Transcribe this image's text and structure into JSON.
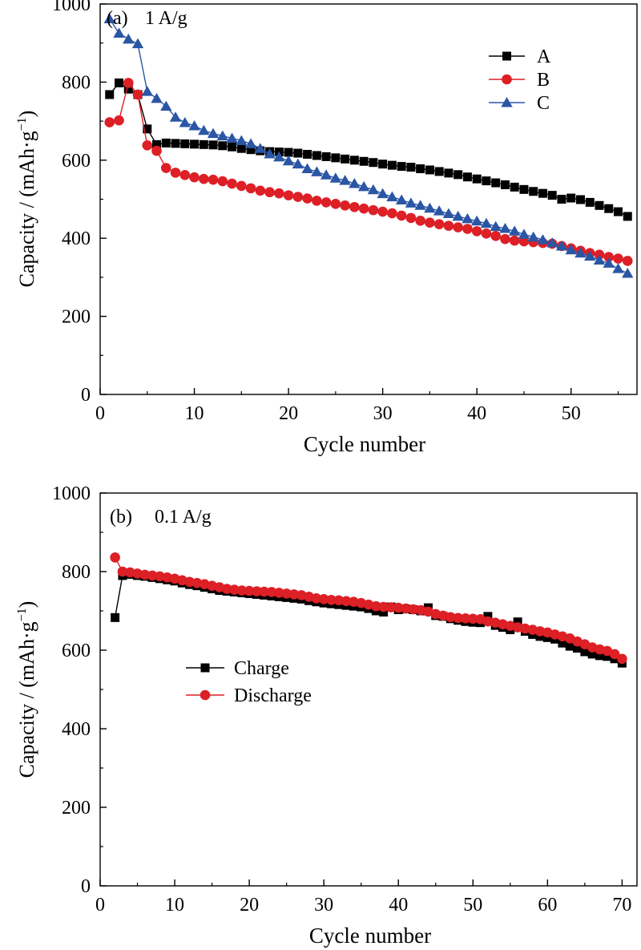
{
  "colors": {
    "A": "#000000",
    "B": "#dd1f26",
    "C": "#2a56a4",
    "Charge": "#000000",
    "Discharge": "#dd1f26"
  },
  "chart_data": [
    {
      "type": "line",
      "panel_label": "(a)",
      "annotation": "1 A/g",
      "xlabel": "Cycle number",
      "ylabel": "Capacity / (mAh·g",
      "ylabel_sup": "−1",
      "ylabel_close": ")",
      "xlim": [
        0,
        57
      ],
      "ylim": [
        0,
        1000
      ],
      "xticks": [
        0,
        10,
        20,
        30,
        40,
        50
      ],
      "yticks": [
        0,
        200,
        400,
        600,
        800,
        1000
      ],
      "grid": false,
      "legend_position": "top-right",
      "series": [
        {
          "name": "A",
          "marker": "square",
          "color": "#000000",
          "x": [
            1,
            2,
            3,
            4,
            5,
            6,
            7,
            8,
            9,
            10,
            11,
            12,
            13,
            14,
            15,
            16,
            17,
            18,
            19,
            20,
            21,
            22,
            23,
            24,
            25,
            26,
            27,
            28,
            29,
            30,
            31,
            32,
            33,
            34,
            35,
            36,
            37,
            38,
            39,
            40,
            41,
            42,
            43,
            44,
            45,
            46,
            47,
            48,
            49,
            50,
            51,
            52,
            53,
            54,
            55,
            56
          ],
          "y": [
            768,
            798,
            782,
            768,
            680,
            640,
            644,
            643,
            642,
            641,
            640,
            639,
            637,
            634,
            630,
            627,
            624,
            622,
            621,
            620,
            618,
            615,
            612,
            609,
            606,
            603,
            600,
            597,
            594,
            590,
            587,
            584,
            582,
            578,
            575,
            571,
            567,
            563,
            557,
            552,
            547,
            542,
            537,
            531,
            525,
            520,
            515,
            510,
            500,
            503,
            499,
            492,
            484,
            476,
            468,
            456
          ]
        },
        {
          "name": "B",
          "marker": "circle",
          "color": "#dd1f26",
          "x": [
            1,
            2,
            3,
            4,
            5,
            6,
            7,
            8,
            9,
            10,
            11,
            12,
            13,
            14,
            15,
            16,
            17,
            18,
            19,
            20,
            21,
            22,
            23,
            24,
            25,
            26,
            27,
            28,
            29,
            30,
            31,
            32,
            33,
            34,
            35,
            36,
            37,
            38,
            39,
            40,
            41,
            42,
            43,
            44,
            45,
            46,
            47,
            48,
            49,
            50,
            51,
            52,
            53,
            54,
            55,
            56
          ],
          "y": [
            697,
            702,
            798,
            768,
            638,
            624,
            580,
            568,
            562,
            556,
            552,
            550,
            546,
            540,
            534,
            528,
            522,
            518,
            515,
            510,
            506,
            502,
            496,
            492,
            488,
            484,
            480,
            476,
            472,
            468,
            464,
            458,
            452,
            445,
            440,
            436,
            432,
            428,
            424,
            418,
            412,
            406,
            398,
            394,
            392,
            390,
            388,
            386,
            380,
            374,
            368,
            362,
            358,
            352,
            348,
            342
          ]
        },
        {
          "name": "C",
          "marker": "triangle",
          "color": "#2a56a4",
          "x": [
            1,
            2,
            3,
            4,
            5,
            6,
            7,
            8,
            9,
            10,
            11,
            12,
            13,
            14,
            15,
            16,
            17,
            18,
            19,
            20,
            21,
            22,
            23,
            24,
            25,
            26,
            27,
            28,
            29,
            30,
            31,
            32,
            33,
            34,
            35,
            36,
            37,
            38,
            39,
            40,
            41,
            42,
            43,
            44,
            45,
            46,
            47,
            48,
            49,
            50,
            51,
            52,
            53,
            54,
            55,
            56
          ],
          "y": [
            962,
            925,
            910,
            898,
            776,
            758,
            738,
            710,
            696,
            688,
            676,
            668,
            662,
            656,
            650,
            642,
            630,
            616,
            608,
            598,
            590,
            578,
            570,
            562,
            554,
            548,
            540,
            532,
            524,
            514,
            506,
            498,
            490,
            484,
            477,
            470,
            463,
            456,
            450,
            444,
            438,
            430,
            425,
            418,
            410,
            403,
            396,
            388,
            380,
            370,
            362,
            354,
            344,
            336,
            322,
            310
          ]
        }
      ]
    },
    {
      "type": "line",
      "panel_label": "(b)",
      "annotation": "0.1 A/g",
      "xlabel": "Cycle number",
      "ylabel": "Capacity / (mAh·g",
      "ylabel_sup": "−1",
      "ylabel_close": ")",
      "xlim": [
        0,
        72
      ],
      "ylim": [
        0,
        1000
      ],
      "xticks": [
        0,
        10,
        20,
        30,
        40,
        50,
        60,
        70
      ],
      "yticks": [
        0,
        200,
        400,
        600,
        800,
        1000
      ],
      "grid": false,
      "legend_position": "center-left",
      "series": [
        {
          "name": "Charge",
          "marker": "square",
          "color": "#000000",
          "x": [
            2,
            3,
            4,
            5,
            6,
            7,
            8,
            9,
            10,
            11,
            12,
            13,
            14,
            15,
            16,
            17,
            18,
            19,
            20,
            21,
            22,
            23,
            24,
            25,
            26,
            27,
            28,
            29,
            30,
            31,
            32,
            33,
            34,
            35,
            36,
            37,
            38,
            39,
            40,
            41,
            42,
            43,
            44,
            45,
            46,
            47,
            48,
            49,
            50,
            51,
            52,
            53,
            54,
            55,
            56,
            57,
            58,
            59,
            60,
            61,
            62,
            63,
            64,
            65,
            66,
            67,
            68,
            69,
            70
          ],
          "y": [
            683,
            790,
            793,
            790,
            788,
            785,
            782,
            779,
            776,
            771,
            767,
            764,
            760,
            756,
            752,
            750,
            748,
            746,
            744,
            742,
            740,
            738,
            736,
            734,
            732,
            730,
            726,
            723,
            720,
            718,
            716,
            714,
            712,
            710,
            706,
            700,
            697,
            710,
            703,
            705,
            703,
            700,
            708,
            688,
            686,
            680,
            676,
            673,
            671,
            670,
            686,
            663,
            658,
            652,
            672,
            648,
            640,
            635,
            632,
            628,
            618,
            610,
            605,
            596,
            590,
            586,
            584,
            578,
            567
          ]
        },
        {
          "name": "Discharge",
          "marker": "circle",
          "color": "#dd1f26",
          "x": [
            2,
            3,
            4,
            5,
            6,
            7,
            8,
            9,
            10,
            11,
            12,
            13,
            14,
            15,
            16,
            17,
            18,
            19,
            20,
            21,
            22,
            23,
            24,
            25,
            26,
            27,
            28,
            29,
            30,
            31,
            32,
            33,
            34,
            35,
            36,
            37,
            38,
            39,
            40,
            41,
            42,
            43,
            44,
            45,
            46,
            47,
            48,
            49,
            50,
            51,
            52,
            53,
            54,
            55,
            56,
            57,
            58,
            59,
            60,
            61,
            62,
            63,
            64,
            65,
            66,
            67,
            68,
            69,
            70
          ],
          "y": [
            836,
            800,
            798,
            795,
            792,
            790,
            788,
            785,
            782,
            778,
            774,
            771,
            768,
            764,
            760,
            756,
            754,
            752,
            751,
            750,
            749,
            748,
            746,
            744,
            742,
            740,
            736,
            732,
            730,
            728,
            727,
            725,
            723,
            720,
            716,
            712,
            710,
            709,
            708,
            706,
            704,
            702,
            698,
            692,
            688,
            684,
            682,
            681,
            680,
            679,
            673,
            670,
            666,
            662,
            658,
            655,
            652,
            648,
            645,
            640,
            635,
            630,
            622,
            615,
            607,
            602,
            598,
            590,
            578
          ]
        }
      ],
      "legend_order": [
        "Charge",
        "Discharge"
      ]
    }
  ]
}
